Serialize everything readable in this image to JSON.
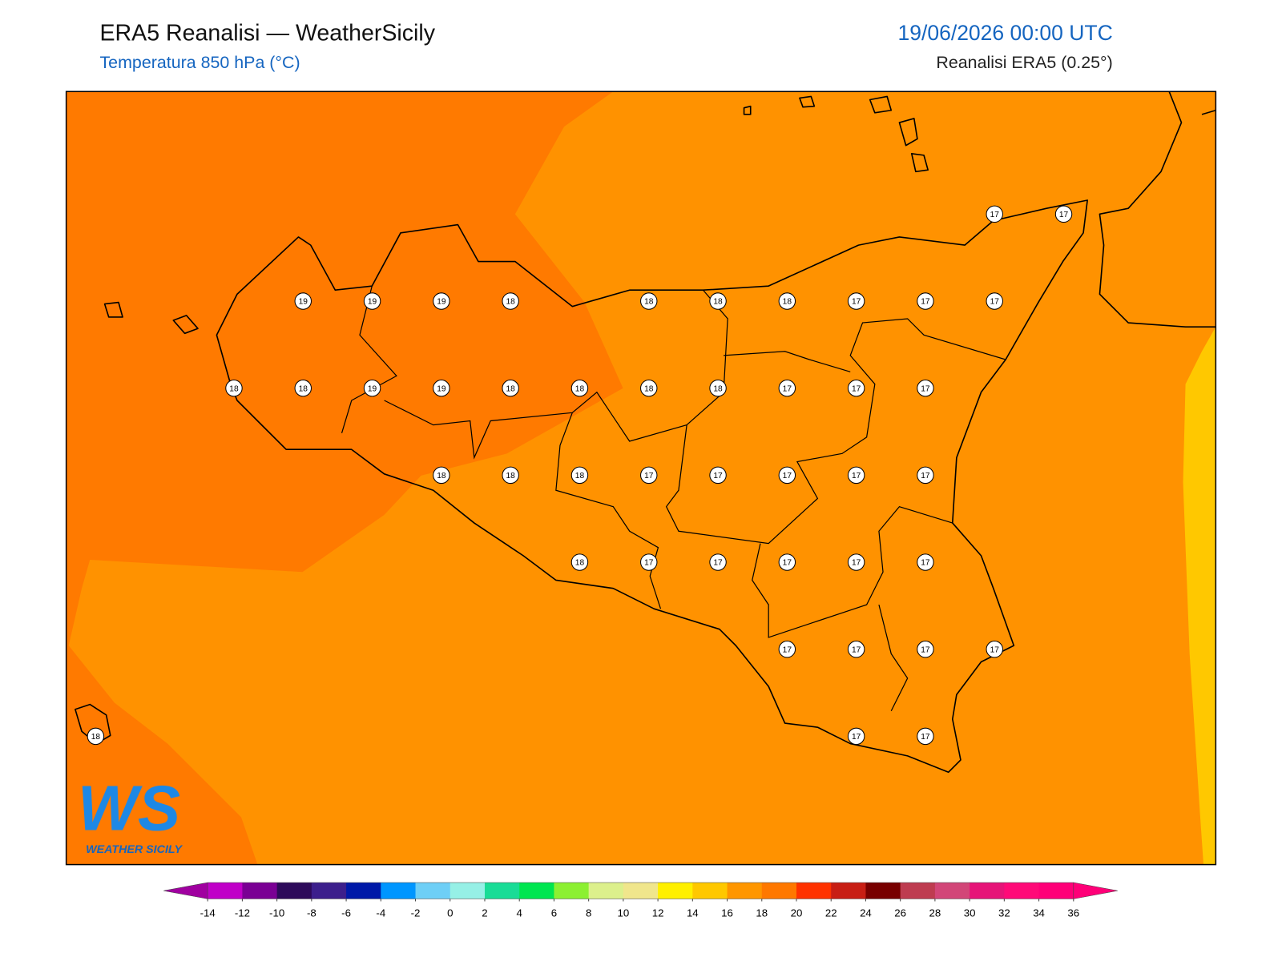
{
  "header": {
    "title": "ERA5 Reanalisi — WeatherSicily",
    "subtitle": "Temperatura 850 hPa (°C)",
    "datetime": "19/06/2026 00:00 UTC",
    "source": "Reanalisi ERA5 (0.25°)"
  },
  "map": {
    "grid_values": [
      [
        null,
        null,
        null,
        null,
        null,
        null,
        null,
        null,
        null,
        null,
        null,
        null,
        null,
        17,
        17
      ],
      [
        null,
        null,
        null,
        19,
        19,
        19,
        18,
        null,
        18,
        18,
        18,
        17,
        17,
        17,
        null
      ],
      [
        null,
        null,
        18,
        18,
        19,
        19,
        18,
        18,
        18,
        18,
        17,
        17,
        17,
        null,
        null
      ],
      [
        null,
        null,
        null,
        null,
        null,
        18,
        18,
        18,
        17,
        17,
        17,
        17,
        17,
        null,
        null
      ],
      [
        null,
        null,
        null,
        null,
        null,
        null,
        null,
        18,
        17,
        17,
        17,
        17,
        17,
        null,
        null
      ],
      [
        null,
        null,
        null,
        null,
        null,
        null,
        null,
        null,
        null,
        null,
        17,
        17,
        17,
        17,
        null
      ],
      [
        18,
        null,
        null,
        null,
        null,
        null,
        null,
        null,
        null,
        null,
        null,
        17,
        17,
        null,
        null
      ]
    ]
  },
  "colorbar": {
    "ticks": [
      -14,
      -12,
      -10,
      -8,
      -6,
      -4,
      -2,
      0,
      2,
      4,
      6,
      8,
      10,
      12,
      14,
      16,
      18,
      20,
      22,
      24,
      26,
      28,
      30,
      32,
      34,
      36
    ],
    "colors": [
      "#a000a0",
      "#c000c8",
      "#7a0094",
      "#2d0a5a",
      "#3c1f8c",
      "#0019a8",
      "#0096ff",
      "#6ecff6",
      "#96f0e6",
      "#19dc96",
      "#00e650",
      "#8cf032",
      "#dcf08c",
      "#f0e68c",
      "#fff000",
      "#ffc800",
      "#ff9600",
      "#ff7800",
      "#ff3200",
      "#c81e14",
      "#780000",
      "#be3c50",
      "#d24678",
      "#e61478",
      "#ff0a78",
      "#ff0078",
      "#ff0078"
    ]
  },
  "logo": {
    "initials": "WS",
    "name": "WEATHER SICILY"
  }
}
